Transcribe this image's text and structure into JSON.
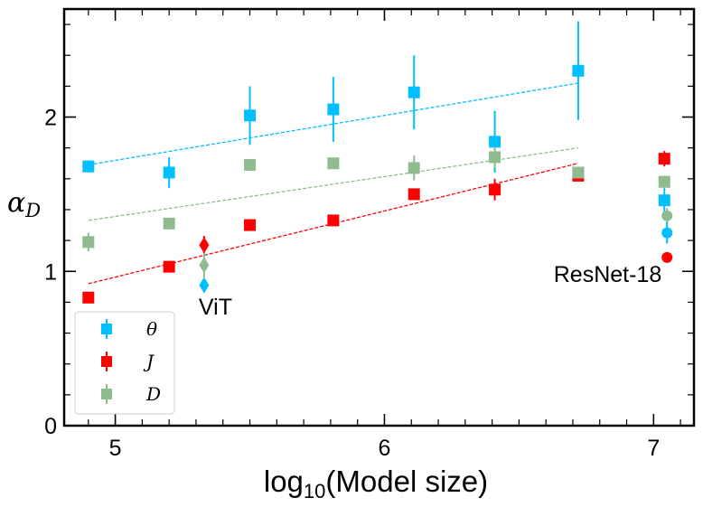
{
  "chart_data": {
    "type": "scatter",
    "title": "",
    "xlabel": "log10(Model size)",
    "xlabel_base": "log",
    "xlabel_sub": "10",
    "xlabel_rest": "(Model size)",
    "ylabel": "α_D",
    "ylabel_base": "α",
    "ylabel_sub": "D",
    "xlim": [
      4.81,
      7.15
    ],
    "ylim": [
      0,
      2.7
    ],
    "xticks": [
      5,
      6,
      7
    ],
    "xtick_labels": [
      "5",
      "6",
      "7"
    ],
    "yticks": [
      0,
      1,
      2
    ],
    "ytick_labels": [
      "0",
      "1",
      "2"
    ],
    "legend_position": "lower-left",
    "series": [
      {
        "name": "θ",
        "color": "#00bfff",
        "marker": "square",
        "x": [
          4.9,
          5.2,
          5.5,
          5.81,
          6.11,
          6.41,
          6.72
        ],
        "y": [
          1.68,
          1.64,
          2.01,
          2.05,
          2.16,
          1.84,
          2.3
        ],
        "err": [
          0.04,
          0.1,
          0.19,
          0.21,
          0.24,
          0.2,
          0.32
        ],
        "fit": [
          [
            4.9,
            1.69
          ],
          [
            6.72,
            2.22
          ]
        ]
      },
      {
        "name": "J",
        "color": "#ff0000",
        "marker": "square",
        "x": [
          4.9,
          5.2,
          5.5,
          5.81,
          6.11,
          6.41,
          6.72
        ],
        "y": [
          0.83,
          1.03,
          1.3,
          1.33,
          1.5,
          1.53,
          1.62
        ],
        "err": [
          0.02,
          0.02,
          0.02,
          0.02,
          0.03,
          0.07,
          0.02
        ],
        "fit": [
          [
            4.9,
            0.92
          ],
          [
            6.72,
            1.7
          ]
        ]
      },
      {
        "name": "D",
        "color": "#8fbc8f",
        "marker": "square",
        "x": [
          4.9,
          5.2,
          5.5,
          5.81,
          6.11,
          6.41,
          6.72
        ],
        "y": [
          1.19,
          1.31,
          1.69,
          1.7,
          1.67,
          1.74,
          1.64
        ],
        "err": [
          0.06,
          0.03,
          0.02,
          0.03,
          0.08,
          0.07,
          0.03
        ],
        "fit": [
          [
            4.9,
            1.33
          ],
          [
            6.72,
            1.8
          ]
        ]
      }
    ],
    "extra_points": [
      {
        "group": "ViT",
        "series": "J",
        "marker": "diamond",
        "color": "#ff0000",
        "x": 5.33,
        "y": 1.17,
        "err": 0.06
      },
      {
        "group": "ViT",
        "series": "D",
        "marker": "diamond",
        "color": "#8fbc8f",
        "x": 5.33,
        "y": 1.04,
        "err": 0.08
      },
      {
        "group": "ViT",
        "series": "θ",
        "marker": "diamond",
        "color": "#00bfff",
        "x": 5.33,
        "y": 0.91,
        "err": 0.04
      },
      {
        "group": "ResNet-18",
        "series": "J",
        "marker": "square",
        "color": "#ff0000",
        "x": 7.04,
        "y": 1.73,
        "err": 0.05
      },
      {
        "group": "ResNet-18",
        "series": "D",
        "marker": "square",
        "color": "#8fbc8f",
        "x": 7.04,
        "y": 1.58,
        "err": 0.04
      },
      {
        "group": "ResNet-18",
        "series": "θ",
        "marker": "square",
        "color": "#00bfff",
        "x": 7.04,
        "y": 1.46,
        "err": 0.08
      },
      {
        "group": "ResNet-18",
        "series": "D",
        "marker": "circle",
        "color": "#8fbc8f",
        "x": 7.05,
        "y": 1.36,
        "err": 0.05
      },
      {
        "group": "ResNet-18",
        "series": "θ",
        "marker": "circle",
        "color": "#00bfff",
        "x": 7.05,
        "y": 1.25,
        "err": 0.07
      },
      {
        "group": "ResNet-18",
        "series": "J",
        "marker": "circle",
        "color": "#ff0000",
        "x": 7.05,
        "y": 1.09,
        "err": 0.03
      }
    ],
    "annotations": [
      {
        "text": "ViT",
        "x": 5.31,
        "y": 0.72,
        "anchor": "start"
      },
      {
        "text": "ResNet-18",
        "x": 7.03,
        "y": 0.93,
        "anchor": "end"
      }
    ]
  }
}
